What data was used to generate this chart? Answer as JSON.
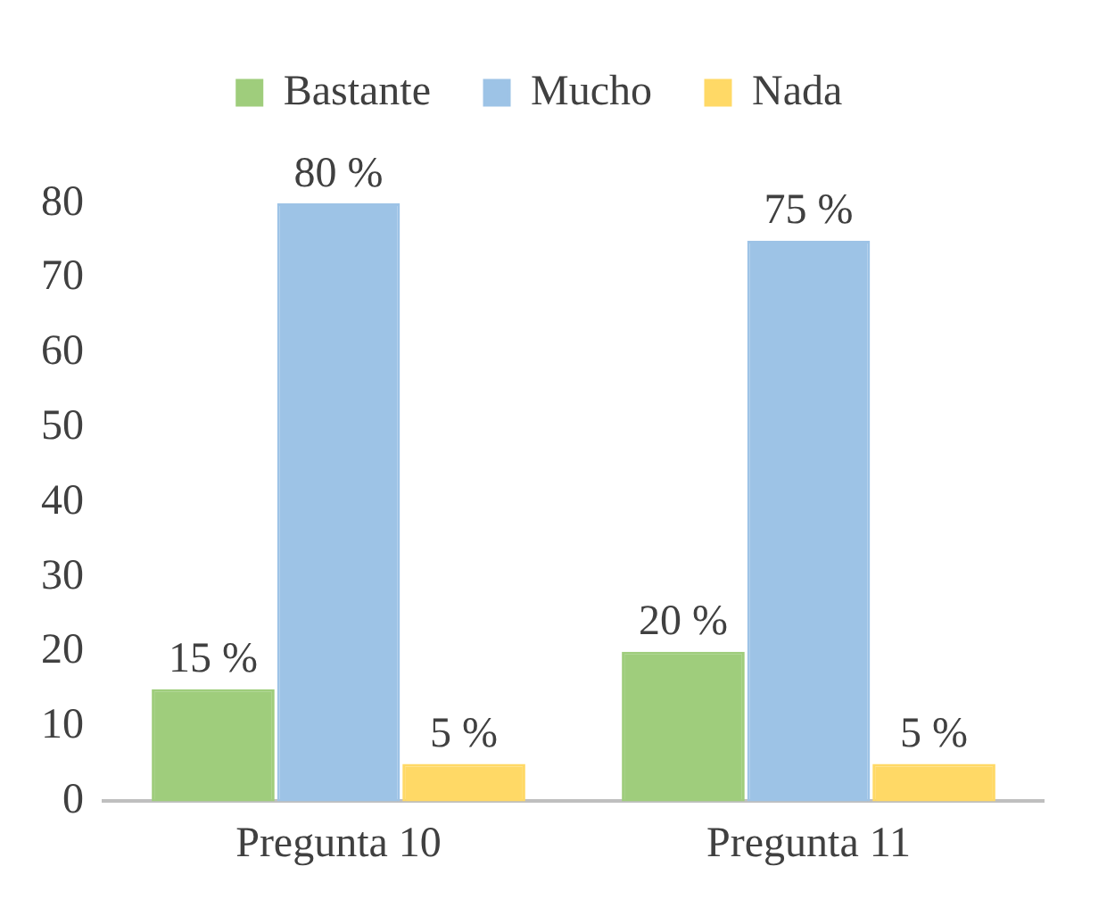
{
  "chart_data": {
    "type": "bar",
    "categories": [
      "Pregunta 10",
      "Pregunta 11"
    ],
    "series": [
      {
        "name": "Bastante",
        "color": "#9fcd7c",
        "values": [
          15,
          20
        ],
        "value_labels": [
          "15 %",
          "20 %"
        ]
      },
      {
        "name": "Mucho",
        "color": "#9dc3e6",
        "values": [
          80,
          75
        ],
        "value_labels": [
          "80 %",
          "75 %"
        ]
      },
      {
        "name": "Nada",
        "color": "#ffd966",
        "values": [
          5,
          5
        ],
        "value_labels": [
          "5 %",
          "5 %"
        ]
      }
    ],
    "ylim": [
      0,
      80
    ],
    "yticks": [
      0,
      10,
      20,
      30,
      40,
      50,
      60,
      70,
      80
    ],
    "grid": false,
    "legend": "top"
  }
}
